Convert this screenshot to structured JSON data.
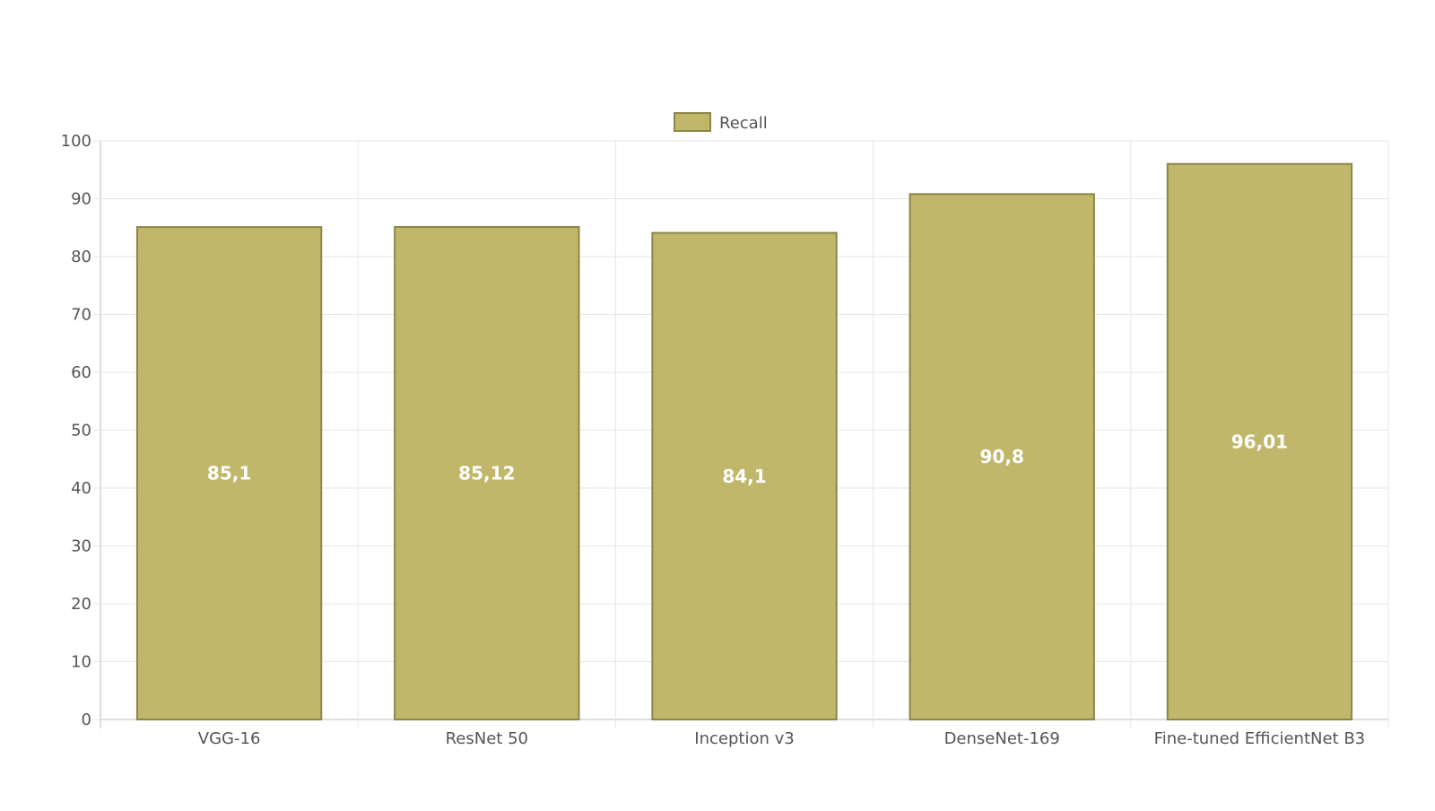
{
  "chart_data": {
    "type": "bar",
    "title": "",
    "xlabel": "",
    "ylabel": "",
    "categories": [
      "VGG-16",
      "ResNet 50",
      "Inception v3",
      "DenseNet-169",
      "Fine-tuned EfficientNet B3"
    ],
    "series": [
      {
        "name": "Recall",
        "values": [
          85.1,
          85.12,
          84.1,
          90.8,
          96.01
        ],
        "labels": [
          "85,1",
          "85,12",
          "84,1",
          "90,8",
          "96,01"
        ]
      }
    ],
    "ylim": [
      0,
      100
    ],
    "yticks": [
      0,
      10,
      20,
      30,
      40,
      50,
      60,
      70,
      80,
      90,
      100
    ],
    "grid": true,
    "legend_position": "top-center",
    "colors": {
      "bar_fill": "#c0b76b",
      "bar_border": "#8c8648",
      "data_label": "#ffffff",
      "grid": "#e6e6e6",
      "axis": "#bdbdbd",
      "tick_text": "#555555"
    }
  }
}
